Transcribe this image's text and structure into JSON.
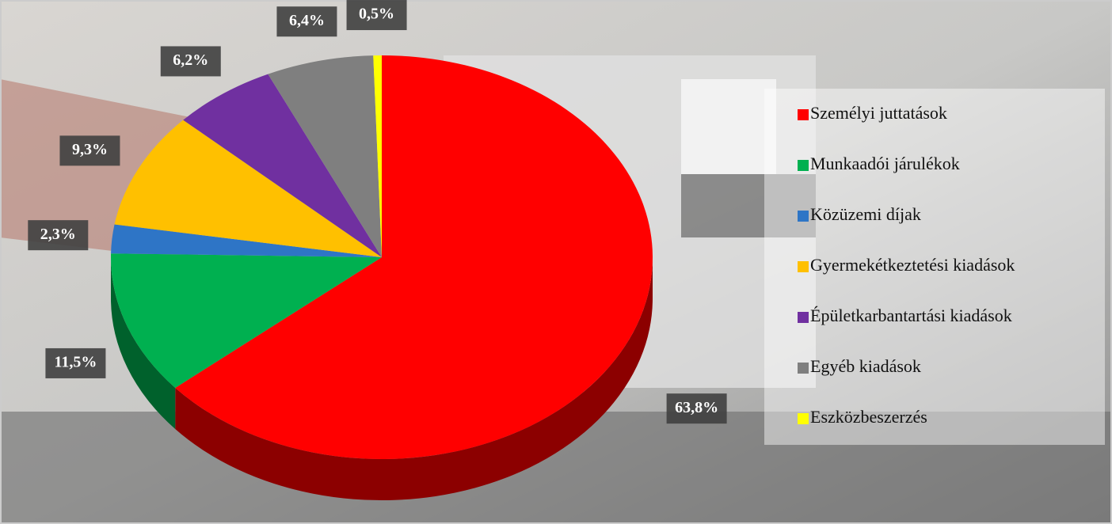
{
  "chart_data": {
    "type": "pie",
    "categories": [
      "Személyi juttatások",
      "Munkaadói járulékok",
      "Közüzemi díjak",
      "Gyermekétkeztetési kiadások",
      "Épületkarbantartási kiadások",
      "Egyéb kiadások",
      "Eszközbeszerzés"
    ],
    "values": [
      63.8,
      11.5,
      2.3,
      9.3,
      6.2,
      6.4,
      0.5
    ],
    "value_labels": [
      "63,8%",
      "11,5%",
      "2,3%",
      "9,3%",
      "6,2%",
      "6,4%",
      "0,5%"
    ],
    "colors": [
      "#ff0000",
      "#00b050",
      "#2e75c6",
      "#ffc000",
      "#7030a0",
      "#7f7f7f",
      "#ffff00"
    ],
    "legend": "right"
  }
}
